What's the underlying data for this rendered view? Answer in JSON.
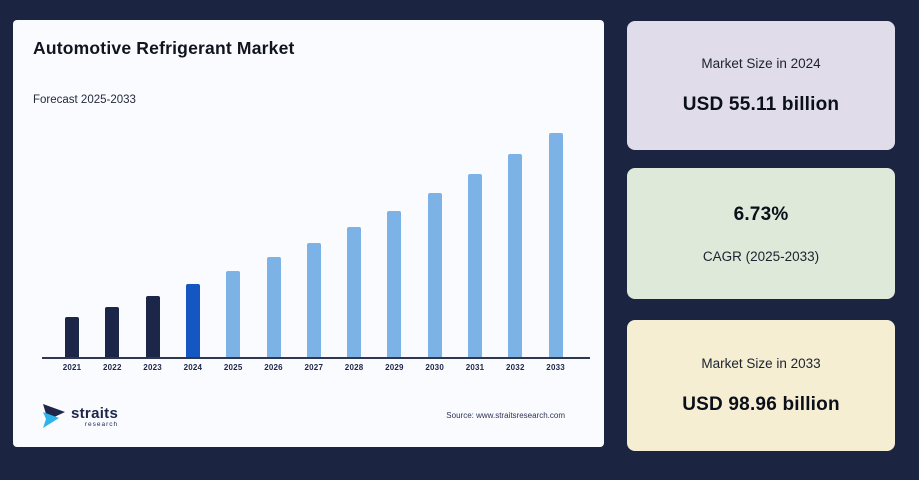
{
  "chart_card": {
    "title": "Automotive Refrigerant Market",
    "subtitle": "Forecast 2025-2033",
    "source": "Source: www.straitsresearch.com",
    "logo": {
      "name": "straits",
      "sub": "research",
      "mark_navy": "#1e2749",
      "mark_blue": "#2eb3ea"
    }
  },
  "chart_data": {
    "type": "bar",
    "title": "Automotive Refrigerant Market",
    "categories": [
      "2021",
      "2022",
      "2023",
      "2024",
      "2025",
      "2026",
      "2027",
      "2028",
      "2029",
      "2030",
      "2031",
      "2032",
      "2033"
    ],
    "values": [
      45.3,
      48.4,
      51.6,
      55.11,
      58.8,
      62.8,
      67.0,
      71.5,
      76.3,
      81.5,
      86.9,
      92.8,
      98.96
    ],
    "unit": "USD billion",
    "xlabel": "",
    "ylabel": "",
    "ylim": [
      33.8,
      100
    ],
    "grid": false,
    "legend": false,
    "colors": {
      "historical": "#1b2649",
      "base_year": "#1456c2",
      "forecast": "#7db2e6"
    },
    "historical_last_index": 2,
    "base_year_index": 3
  },
  "stat_cards": [
    {
      "label": "Market Size in 2024",
      "value": "USD 55.11 billion",
      "bg": "#e1dcea"
    },
    {
      "label": "CAGR (2025-2033)",
      "value": "6.73%",
      "bg": "#dfe9d9"
    },
    {
      "label": "Market Size in 2033",
      "value": "USD 98.96 billion",
      "bg": "#f6eed2"
    }
  ]
}
